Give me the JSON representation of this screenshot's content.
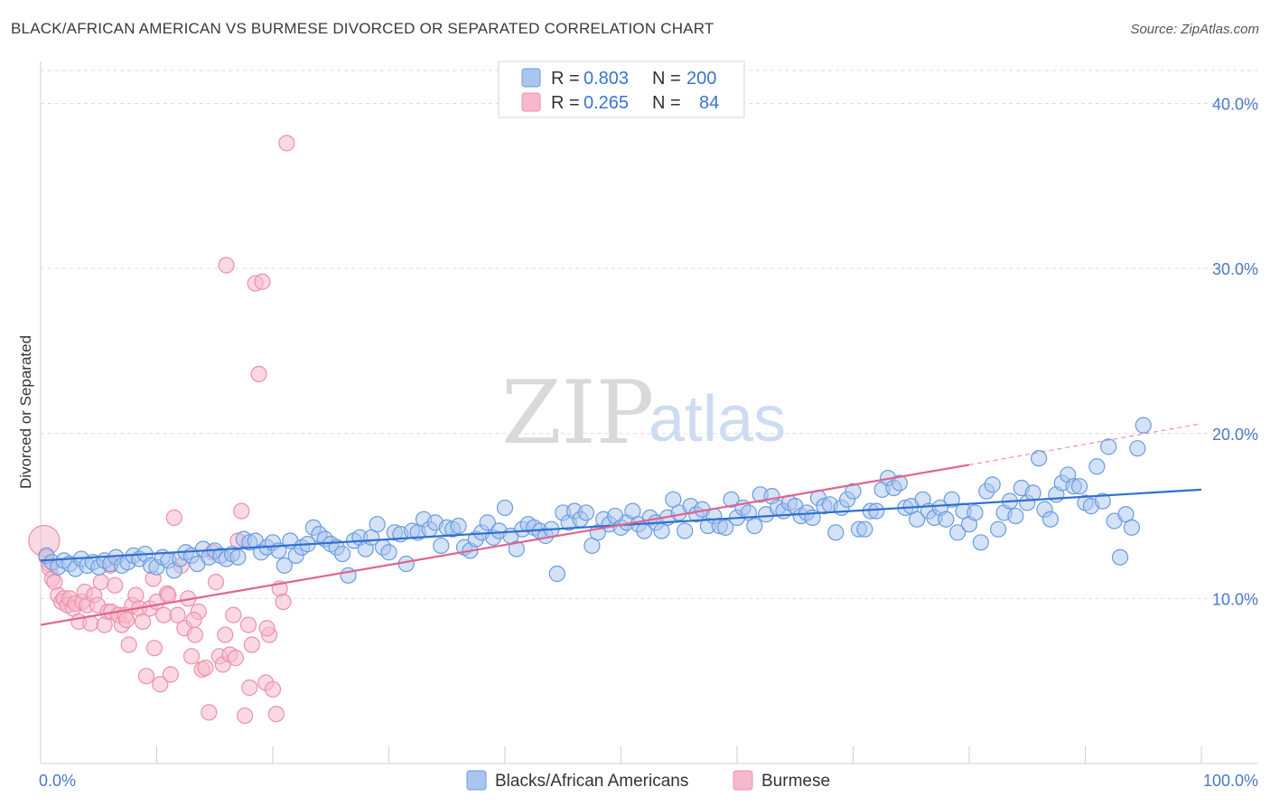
{
  "header": {
    "title": "BLACK/AFRICAN AMERICAN VS BURMESE DIVORCED OR SEPARATED CORRELATION CHART",
    "source": "Source: ZipAtlas.com"
  },
  "watermark": {
    "zip": "ZIP",
    "atlas": "atlas"
  },
  "legend": {
    "r_label": "R =",
    "n_label": "N =",
    "rows": [
      {
        "r": "0.803",
        "n": "200"
      },
      {
        "r": "0.265",
        "n": "84"
      }
    ]
  },
  "bottom_legend": [
    "Blacks/African Americans",
    "Burmese"
  ],
  "chart_data": {
    "type": "scatter",
    "title": "BLACK/AFRICAN AMERICAN VS BURMESE DIVORCED OR SEPARATED CORRELATION CHART",
    "xlabel": "",
    "ylabel": "Divorced or Separated",
    "xlim": [
      0,
      100
    ],
    "ylim": [
      0,
      42
    ],
    "x_tick_labels": [
      "0.0%",
      "100.0%"
    ],
    "y_ticks": [
      10,
      20,
      30,
      40
    ],
    "y_tick_labels": [
      "10.0%",
      "20.0%",
      "30.0%",
      "40.0%"
    ],
    "grid": true,
    "legend_position": "top-center",
    "colors": {
      "blue_fill": "#a9c6ee",
      "blue_stroke": "#6a9be0",
      "blue_line": "#2f6fd0",
      "pink_fill": "#f6b9cb",
      "pink_stroke": "#ee8fab",
      "pink_line": "#e0648e"
    },
    "series": [
      {
        "name": "Blacks/African Americans",
        "r": 0.803,
        "n": 200,
        "trend": {
          "x": [
            0,
            100
          ],
          "y": [
            12.3,
            16.6
          ]
        },
        "points": [
          [
            0.5,
            12.6
          ],
          [
            1,
            12.2
          ],
          [
            1.5,
            11.9
          ],
          [
            2,
            12.3
          ],
          [
            2.5,
            12.1
          ],
          [
            3,
            11.8
          ],
          [
            3.5,
            12.4
          ],
          [
            4,
            12
          ],
          [
            4.5,
            12.2
          ],
          [
            5,
            11.9
          ],
          [
            5.5,
            12.3
          ],
          [
            6,
            12.1
          ],
          [
            6.5,
            12.5
          ],
          [
            7,
            12
          ],
          [
            7.5,
            12.2
          ],
          [
            8,
            12.6
          ],
          [
            8.5,
            12.4
          ],
          [
            9,
            12.7
          ],
          [
            9.5,
            12
          ],
          [
            10,
            11.9
          ],
          [
            10.5,
            12.5
          ],
          [
            11,
            12.3
          ],
          [
            11.5,
            11.7
          ],
          [
            12,
            12.4
          ],
          [
            12.5,
            12.8
          ],
          [
            13,
            12.6
          ],
          [
            13.5,
            12.1
          ],
          [
            14,
            13
          ],
          [
            14.5,
            12.5
          ],
          [
            15,
            12.9
          ],
          [
            15.5,
            12.6
          ],
          [
            16,
            12.4
          ],
          [
            16.5,
            12.7
          ],
          [
            17,
            12.5
          ],
          [
            17.5,
            13.6
          ],
          [
            18,
            13.4
          ],
          [
            18.5,
            13.5
          ],
          [
            19,
            12.8
          ],
          [
            19.5,
            13.1
          ],
          [
            20,
            13.4
          ],
          [
            20.5,
            12.9
          ],
          [
            21,
            12
          ],
          [
            21.5,
            13.5
          ],
          [
            22,
            12.6
          ],
          [
            22.5,
            13.1
          ],
          [
            23,
            13.3
          ],
          [
            23.5,
            14.3
          ],
          [
            24,
            13.9
          ],
          [
            24.5,
            13.6
          ],
          [
            25,
            13.3
          ],
          [
            25.5,
            13.1
          ],
          [
            26,
            12.7
          ],
          [
            26.5,
            11.4
          ],
          [
            27,
            13.5
          ],
          [
            27.5,
            13.7
          ],
          [
            28,
            13
          ],
          [
            28.5,
            13.7
          ],
          [
            29,
            14.5
          ],
          [
            29.5,
            13.1
          ],
          [
            30,
            12.8
          ],
          [
            30.5,
            14
          ],
          [
            31,
            13.9
          ],
          [
            31.5,
            12.1
          ],
          [
            32,
            14.1
          ],
          [
            32.5,
            14
          ],
          [
            33,
            14.8
          ],
          [
            33.5,
            14.2
          ],
          [
            34,
            14.6
          ],
          [
            34.5,
            13.2
          ],
          [
            35,
            14.3
          ],
          [
            35.5,
            14.2
          ],
          [
            36,
            14.4
          ],
          [
            36.5,
            13.1
          ],
          [
            37,
            12.9
          ],
          [
            37.5,
            13.6
          ],
          [
            38,
            14
          ],
          [
            38.5,
            14.6
          ],
          [
            39,
            13.7
          ],
          [
            39.5,
            14.1
          ],
          [
            40,
            15.5
          ],
          [
            40.5,
            13.8
          ],
          [
            41,
            13
          ],
          [
            41.5,
            14.2
          ],
          [
            42,
            14.5
          ],
          [
            42.5,
            14.3
          ],
          [
            43,
            14.1
          ],
          [
            43.5,
            13.8
          ],
          [
            44,
            14.2
          ],
          [
            44.5,
            11.5
          ],
          [
            45,
            15.2
          ],
          [
            45.5,
            14.6
          ],
          [
            46,
            15.3
          ],
          [
            46.5,
            14.8
          ],
          [
            47,
            15.2
          ],
          [
            47.5,
            13.2
          ],
          [
            48,
            14
          ],
          [
            48.5,
            14.8
          ],
          [
            49,
            14.5
          ],
          [
            49.5,
            15
          ],
          [
            50,
            14.3
          ],
          [
            50.5,
            14.6
          ],
          [
            51,
            15.3
          ],
          [
            51.5,
            14.5
          ],
          [
            52,
            14.1
          ],
          [
            52.5,
            14.9
          ],
          [
            53,
            14.6
          ],
          [
            53.5,
            14.1
          ],
          [
            54,
            14.9
          ],
          [
            54.5,
            16
          ],
          [
            55,
            15.2
          ],
          [
            55.5,
            14.1
          ],
          [
            56,
            15.6
          ],
          [
            56.5,
            15.1
          ],
          [
            57,
            15.4
          ],
          [
            57.5,
            14.4
          ],
          [
            58,
            15
          ],
          [
            58.5,
            14.4
          ],
          [
            59,
            14.3
          ],
          [
            59.5,
            16
          ],
          [
            60,
            14.9
          ],
          [
            60.5,
            15.5
          ],
          [
            61,
            15.2
          ],
          [
            61.5,
            14.4
          ],
          [
            62,
            16.3
          ],
          [
            62.5,
            15.1
          ],
          [
            63,
            16.2
          ],
          [
            63.5,
            15.5
          ],
          [
            64,
            15.3
          ],
          [
            64.5,
            15.8
          ],
          [
            65,
            15.6
          ],
          [
            65.5,
            15
          ],
          [
            66,
            15.2
          ],
          [
            66.5,
            14.9
          ],
          [
            67,
            16.1
          ],
          [
            67.5,
            15.6
          ],
          [
            68,
            15.7
          ],
          [
            68.5,
            14
          ],
          [
            69,
            15.5
          ],
          [
            69.5,
            16
          ],
          [
            70,
            16.5
          ],
          [
            70.5,
            14.2
          ],
          [
            71,
            14.2
          ],
          [
            71.5,
            15.3
          ],
          [
            72,
            15.3
          ],
          [
            72.5,
            16.6
          ],
          [
            73,
            17.3
          ],
          [
            73.5,
            16.7
          ],
          [
            74,
            17
          ],
          [
            74.5,
            15.5
          ],
          [
            75,
            15.6
          ],
          [
            75.5,
            14.8
          ],
          [
            76,
            16
          ],
          [
            76.5,
            15.3
          ],
          [
            77,
            14.9
          ],
          [
            77.5,
            15.5
          ],
          [
            78,
            14.8
          ],
          [
            78.5,
            16
          ],
          [
            79,
            14
          ],
          [
            79.5,
            15.3
          ],
          [
            80,
            14.5
          ],
          [
            80.5,
            15.2
          ],
          [
            81,
            13.4
          ],
          [
            81.5,
            16.5
          ],
          [
            82,
            16.9
          ],
          [
            82.5,
            14.2
          ],
          [
            83,
            15.2
          ],
          [
            83.5,
            15.9
          ],
          [
            84,
            15
          ],
          [
            84.5,
            16.7
          ],
          [
            85,
            15.8
          ],
          [
            85.5,
            16.4
          ],
          [
            86,
            18.5
          ],
          [
            86.5,
            15.4
          ],
          [
            87,
            14.8
          ],
          [
            87.5,
            16.3
          ],
          [
            88,
            17
          ],
          [
            88.5,
            17.5
          ],
          [
            89,
            16.8
          ],
          [
            89.5,
            16.8
          ],
          [
            90,
            15.8
          ],
          [
            90.5,
            15.6
          ],
          [
            91,
            18
          ],
          [
            91.5,
            15.9
          ],
          [
            92,
            19.2
          ],
          [
            92.5,
            14.7
          ],
          [
            93,
            12.5
          ],
          [
            93.5,
            15.1
          ],
          [
            94,
            14.3
          ],
          [
            94.5,
            19.1
          ],
          [
            95,
            20.5
          ]
        ]
      },
      {
        "name": "Burmese",
        "r": 0.265,
        "n": 84,
        "trend": {
          "x": [
            0,
            80
          ],
          "y": [
            8.4,
            18.1
          ]
        },
        "trend_extension": {
          "x": [
            80,
            100
          ],
          "y": [
            18.1,
            20.6
          ]
        },
        "points": [
          [
            0.3,
            13.5
          ],
          [
            0.5,
            12.5
          ],
          [
            0.7,
            12.1
          ],
          [
            0.8,
            11.8
          ],
          [
            1,
            11.2
          ],
          [
            1.2,
            11
          ],
          [
            1.5,
            10.2
          ],
          [
            1.8,
            9.8
          ],
          [
            2,
            10
          ],
          [
            2.3,
            9.6
          ],
          [
            2.5,
            10
          ],
          [
            2.8,
            9.4
          ],
          [
            3,
            9.7
          ],
          [
            3.3,
            8.6
          ],
          [
            3.6,
            9.8
          ],
          [
            3.8,
            10.4
          ],
          [
            4,
            9.6
          ],
          [
            4.3,
            8.5
          ],
          [
            4.6,
            10.2
          ],
          [
            4.9,
            9.6
          ],
          [
            5.2,
            11
          ],
          [
            5.5,
            8.4
          ],
          [
            5.8,
            9.2
          ],
          [
            6.1,
            9.2
          ],
          [
            6.4,
            10.8
          ],
          [
            6.7,
            9
          ],
          [
            7,
            8.4
          ],
          [
            7.3,
            9
          ],
          [
            7.6,
            7.2
          ],
          [
            7.9,
            9.6
          ],
          [
            8.2,
            10.2
          ],
          [
            8.5,
            9.4
          ],
          [
            8.8,
            8.6
          ],
          [
            9.1,
            5.3
          ],
          [
            9.4,
            9.4
          ],
          [
            9.7,
            11.2
          ],
          [
            10,
            9.8
          ],
          [
            10.3,
            4.8
          ],
          [
            10.6,
            9
          ],
          [
            10.9,
            10.3
          ],
          [
            11.2,
            5.4
          ],
          [
            11.5,
            14.9
          ],
          [
            11.8,
            9
          ],
          [
            12.1,
            12
          ],
          [
            12.4,
            8.2
          ],
          [
            12.7,
            10
          ],
          [
            13,
            6.5
          ],
          [
            13.3,
            7.8
          ],
          [
            13.6,
            9.2
          ],
          [
            13.9,
            5.7
          ],
          [
            14.2,
            5.8
          ],
          [
            14.5,
            3.1
          ],
          [
            14.8,
            12.8
          ],
          [
            15.1,
            11
          ],
          [
            15.4,
            6.5
          ],
          [
            15.7,
            6
          ],
          [
            16,
            30.2
          ],
          [
            16.3,
            6.6
          ],
          [
            16.6,
            9
          ],
          [
            17,
            13.5
          ],
          [
            17.3,
            15.3
          ],
          [
            17.6,
            2.9
          ],
          [
            17.9,
            8.4
          ],
          [
            18.2,
            7.2
          ],
          [
            18.5,
            29.1
          ],
          [
            18.8,
            23.6
          ],
          [
            19.1,
            29.2
          ],
          [
            19.4,
            4.9
          ],
          [
            19.7,
            7.8
          ],
          [
            20,
            4.5
          ],
          [
            20.3,
            3
          ],
          [
            20.6,
            10.6
          ],
          [
            20.9,
            9.8
          ],
          [
            21.2,
            37.6
          ],
          [
            6,
            12
          ],
          [
            7.4,
            8.7
          ],
          [
            9.8,
            7
          ],
          [
            11,
            10.2
          ],
          [
            13.2,
            8.7
          ],
          [
            15.9,
            7.8
          ],
          [
            16.8,
            6.4
          ],
          [
            18,
            4.6
          ],
          [
            19.5,
            8.2
          ]
        ]
      }
    ]
  }
}
